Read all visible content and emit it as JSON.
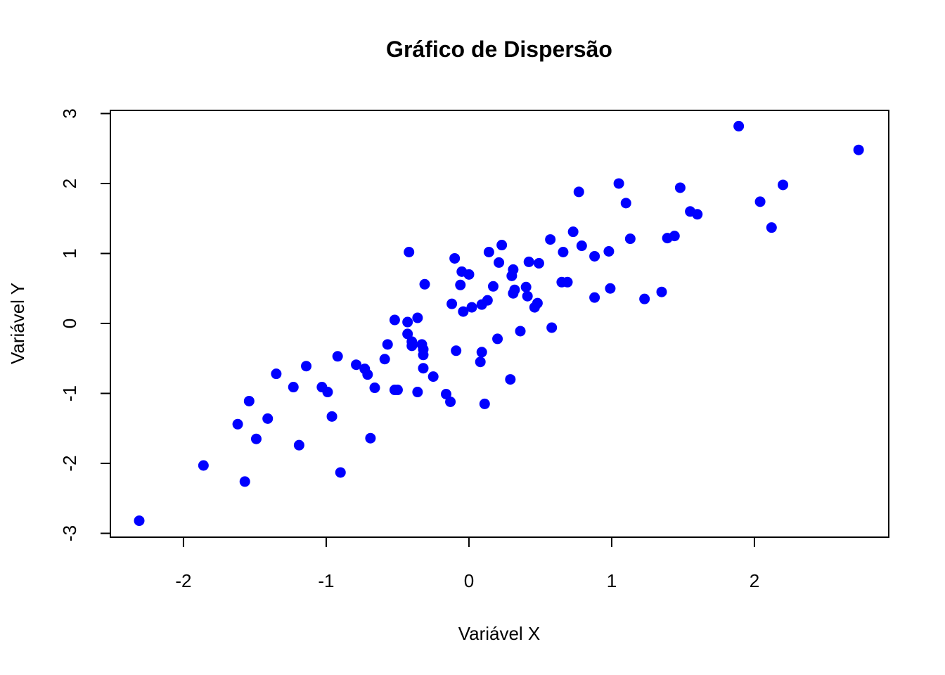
{
  "chart_data": {
    "type": "scatter",
    "title": "Gráfico de Dispersão",
    "x_label": "Variável X",
    "y_label": "Variável Y",
    "xlim": [
      -2.512,
      2.941
    ],
    "ylim": [
      -3.055,
      3.045
    ],
    "xticks": [
      -2,
      -1,
      0,
      1,
      2
    ],
    "yticks": [
      -3,
      -2,
      -1,
      0,
      1,
      2,
      3
    ],
    "series": [
      {
        "color": "blue",
        "x": [
          -2.31,
          -1.86,
          -1.57,
          -1.62,
          -1.49,
          -1.54,
          -1.41,
          -1.35,
          -1.19,
          -1.23,
          -1.14,
          -1.03,
          -0.99,
          -0.96,
          -0.9,
          -0.92,
          -0.79,
          -0.73,
          -0.71,
          -0.69,
          -0.66,
          -0.59,
          -0.57,
          -0.52,
          -0.52,
          -0.5,
          -0.43,
          -0.42,
          -0.43,
          -0.4,
          -0.4,
          -0.36,
          -0.36,
          -0.33,
          -0.32,
          -0.32,
          -0.31,
          -0.32,
          -0.25,
          -0.16,
          -0.13,
          -0.12,
          -0.1,
          -0.09,
          -0.06,
          -0.05,
          -0.04,
          0.0,
          0.02,
          0.08,
          0.09,
          0.09,
          0.13,
          0.11,
          0.14,
          0.17,
          0.2,
          0.21,
          0.23,
          0.29,
          0.3,
          0.31,
          0.31,
          0.32,
          0.36,
          0.4,
          0.41,
          0.42,
          0.46,
          0.48,
          0.49,
          0.57,
          0.58,
          0.66,
          0.65,
          0.69,
          0.73,
          0.77,
          0.79,
          0.88,
          0.88,
          0.98,
          0.99,
          1.05,
          1.1,
          1.13,
          1.23,
          1.35,
          1.39,
          1.44,
          1.48,
          1.55,
          1.6,
          1.89,
          2.04,
          2.12,
          2.2,
          2.73
        ],
        "values": [
          -2.82,
          -2.03,
          -2.26,
          -1.44,
          -1.65,
          -1.11,
          -1.36,
          -0.72,
          -1.74,
          -0.91,
          -0.61,
          -0.91,
          -0.98,
          -1.33,
          -2.13,
          -0.47,
          -0.59,
          -0.65,
          -0.73,
          -1.64,
          -0.92,
          -0.51,
          -0.3,
          0.05,
          -0.95,
          -0.95,
          0.02,
          1.02,
          -0.15,
          -0.26,
          -0.32,
          0.08,
          -0.98,
          -0.3,
          -0.37,
          -0.45,
          0.56,
          -0.64,
          -0.76,
          -1.01,
          -1.12,
          0.28,
          0.93,
          -0.39,
          0.55,
          0.74,
          0.17,
          0.7,
          0.23,
          -0.55,
          -0.41,
          0.27,
          0.33,
          -1.15,
          1.02,
          0.53,
          -0.22,
          0.87,
          1.12,
          -0.8,
          0.68,
          0.77,
          0.43,
          0.48,
          -0.11,
          0.52,
          0.39,
          0.88,
          0.23,
          0.29,
          0.86,
          1.2,
          -0.06,
          1.02,
          0.59,
          0.59,
          1.31,
          1.88,
          1.11,
          0.37,
          0.96,
          1.03,
          0.5,
          2.0,
          1.72,
          1.21,
          0.35,
          0.45,
          1.22,
          1.25,
          1.94,
          1.6,
          1.56,
          2.82,
          1.74,
          1.37,
          1.98,
          2.48
        ]
      }
    ]
  }
}
